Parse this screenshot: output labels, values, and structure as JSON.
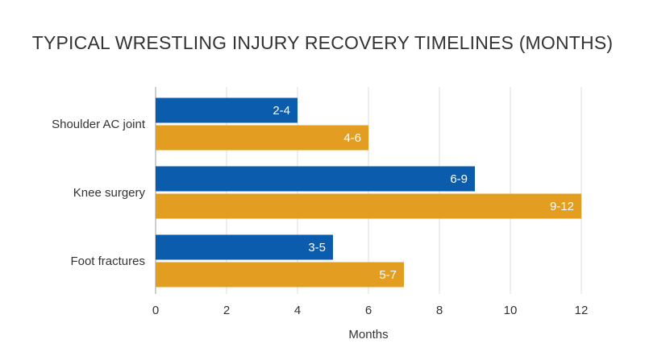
{
  "chart_data": {
    "type": "bar",
    "orientation": "horizontal",
    "title": "TYPICAL WRESTLING INJURY RECOVERY TIMELINES (MONTHS)",
    "xlabel": "Months",
    "ylabel": "",
    "categories": [
      "Shoulder AC joint",
      "Knee surgery",
      "Foot fractures"
    ],
    "series": [
      {
        "color": "#0b5cad",
        "values": [
          4,
          9,
          5
        ],
        "labels": [
          "2-4",
          "6-9",
          "3-5"
        ]
      },
      {
        "color": "#e39e21",
        "values": [
          6,
          12,
          7
        ],
        "labels": [
          "4-6",
          "9-12",
          "5-7"
        ]
      }
    ],
    "xlim": [
      0,
      12
    ],
    "xticks": [
      0,
      2,
      4,
      6,
      8,
      10,
      12
    ],
    "grid": true
  }
}
